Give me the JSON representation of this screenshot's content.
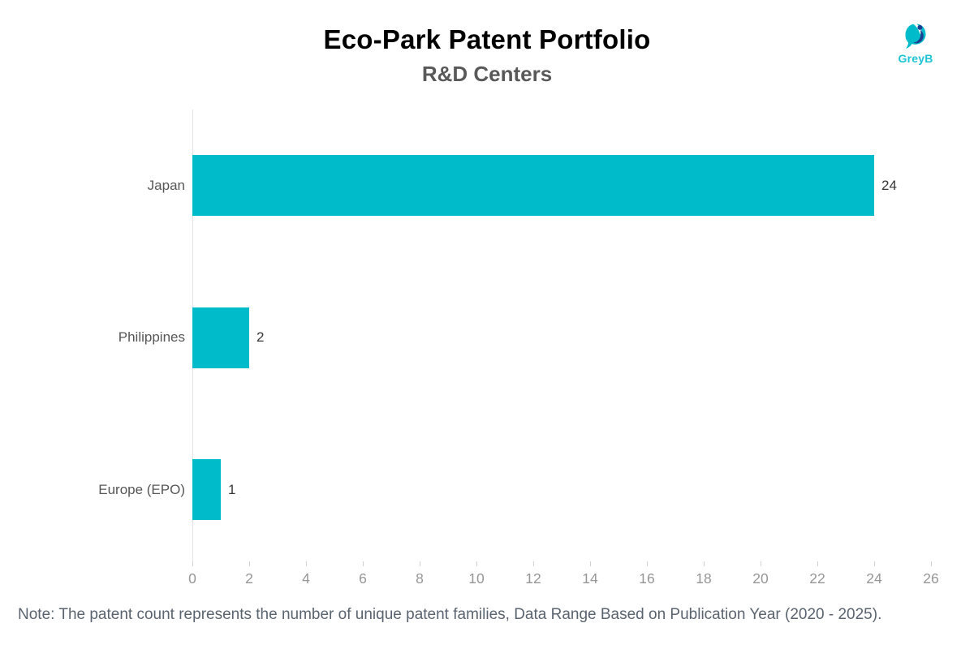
{
  "header": {
    "title": "Eco-Park Patent Portfolio",
    "subtitle": "R&D Centers"
  },
  "logo": {
    "text": "GreyB",
    "mark_color": "#00bccb",
    "mark_accent_color": "#1d3f91",
    "text_color": "#1ec4d6"
  },
  "chart_data": {
    "type": "bar",
    "orientation": "horizontal",
    "title": "Eco-Park Patent Portfolio",
    "subtitle": "R&D Centers",
    "categories": [
      "Japan",
      "Philippines",
      "Europe (EPO)"
    ],
    "values": [
      24,
      2,
      1
    ],
    "value_labels": [
      "24",
      "2",
      "1"
    ],
    "xlabel": "",
    "ylabel": "",
    "xlim": [
      0,
      26
    ],
    "xticks": [
      "0",
      "2",
      "4",
      "6",
      "8",
      "10",
      "12",
      "14",
      "16",
      "18",
      "20",
      "22",
      "24",
      "26"
    ],
    "grid": false,
    "legend": "none",
    "bar_color": "#00bccb"
  },
  "footer": {
    "note": "Note: The patent count represents the number of unique patent families, Data Range Based on Publication Year (2020 - 2025)."
  }
}
